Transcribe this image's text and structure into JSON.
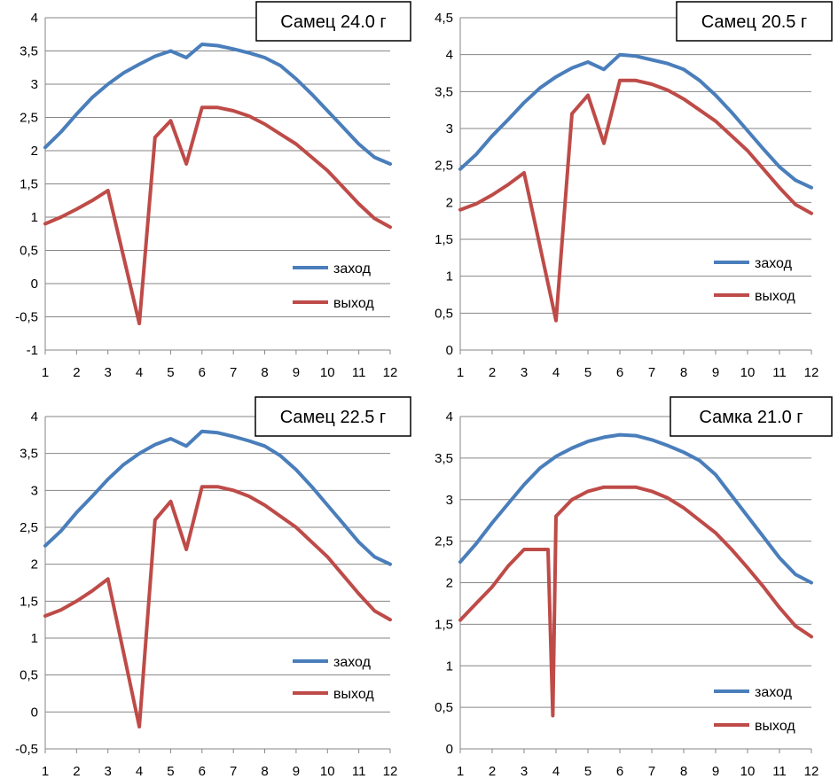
{
  "chart_data": [
    {
      "type": "line",
      "title": "Самец 24.0 г",
      "ylim": [
        -1,
        4
      ],
      "ystep": 0.5,
      "xlim": [
        1,
        12
      ],
      "xticks": [
        1,
        2,
        3,
        4,
        5,
        6,
        7,
        8,
        9,
        10,
        11,
        12
      ],
      "yticks": [
        "-1",
        "-0,5",
        "0",
        "0,5",
        "1",
        "1,5",
        "2",
        "2,5",
        "3",
        "3,5",
        "4"
      ],
      "legend": "right-middle",
      "series": [
        {
          "name": "заход",
          "color": "#4a7ebb",
          "x": [
            1,
            1.5,
            2,
            2.5,
            3,
            3.5,
            4,
            4.5,
            5,
            5.5,
            6,
            6.5,
            7,
            7.5,
            8,
            8.5,
            9,
            9.5,
            10,
            10.5,
            11,
            11.5,
            12
          ],
          "y": [
            2.05,
            2.28,
            2.55,
            2.8,
            3.0,
            3.17,
            3.3,
            3.42,
            3.5,
            3.4,
            3.6,
            3.58,
            3.53,
            3.47,
            3.4,
            3.28,
            3.08,
            2.85,
            2.6,
            2.35,
            2.1,
            1.9,
            1.8
          ]
        },
        {
          "name": "выход",
          "color": "#be4b48",
          "x": [
            1,
            1.5,
            2,
            2.5,
            3,
            3.5,
            4,
            4.5,
            5,
            5.5,
            6,
            6.5,
            7,
            7.5,
            8,
            8.5,
            9,
            9.5,
            10,
            10.5,
            11,
            11.5,
            12
          ],
          "y": [
            0.9,
            1.0,
            1.12,
            1.25,
            1.4,
            0.4,
            -0.6,
            2.2,
            2.45,
            1.8,
            2.65,
            2.65,
            2.6,
            2.52,
            2.4,
            2.25,
            2.1,
            1.9,
            1.7,
            1.45,
            1.2,
            0.98,
            0.85
          ]
        }
      ]
    },
    {
      "type": "line",
      "title": "Самец 20.5 г",
      "ylim": [
        0,
        4.5
      ],
      "ystep": 0.5,
      "xlim": [
        1,
        12
      ],
      "xticks": [
        1,
        2,
        3,
        4,
        5,
        6,
        7,
        8,
        9,
        10,
        11,
        12
      ],
      "yticks": [
        "0",
        "0,5",
        "1",
        "1,5",
        "2",
        "2,5",
        "3",
        "3,5",
        "4",
        "4,5"
      ],
      "legend": "right-middle",
      "series": [
        {
          "name": "заход",
          "color": "#4a7ebb",
          "x": [
            1,
            1.5,
            2,
            2.5,
            3,
            3.5,
            4,
            4.5,
            5,
            5.5,
            6,
            6.5,
            7,
            7.5,
            8,
            8.5,
            9,
            9.5,
            10,
            10.5,
            11,
            11.5,
            12
          ],
          "y": [
            2.45,
            2.65,
            2.9,
            3.12,
            3.35,
            3.55,
            3.7,
            3.82,
            3.9,
            3.8,
            4.0,
            3.98,
            3.93,
            3.88,
            3.8,
            3.65,
            3.45,
            3.22,
            2.97,
            2.72,
            2.48,
            2.3,
            2.2
          ]
        },
        {
          "name": "выход",
          "color": "#be4b48",
          "x": [
            1,
            1.5,
            2,
            2.5,
            3,
            3.5,
            4,
            4.5,
            5,
            5.5,
            6,
            6.5,
            7,
            7.5,
            8,
            8.5,
            9,
            9.5,
            10,
            10.5,
            11,
            11.5,
            12
          ],
          "y": [
            1.9,
            1.98,
            2.1,
            2.24,
            2.4,
            1.4,
            0.4,
            3.2,
            3.45,
            2.8,
            3.65,
            3.65,
            3.6,
            3.52,
            3.4,
            3.25,
            3.1,
            2.9,
            2.7,
            2.45,
            2.2,
            1.97,
            1.85
          ]
        }
      ]
    },
    {
      "type": "line",
      "title": "Самец 22.5 г",
      "ylim": [
        -0.5,
        4
      ],
      "ystep": 0.5,
      "xlim": [
        1,
        12
      ],
      "xticks": [
        1,
        2,
        3,
        4,
        5,
        6,
        7,
        8,
        9,
        10,
        11,
        12
      ],
      "yticks": [
        "-0,5",
        "0",
        "0,5",
        "1",
        "1,5",
        "2",
        "2,5",
        "3",
        "3,5",
        "4"
      ],
      "legend": "right-lower",
      "series": [
        {
          "name": "заход",
          "color": "#4a7ebb",
          "x": [
            1,
            1.5,
            2,
            2.5,
            3,
            3.5,
            4,
            4.5,
            5,
            5.5,
            6,
            6.5,
            7,
            7.5,
            8,
            8.5,
            9,
            9.5,
            10,
            10.5,
            11,
            11.5,
            12
          ],
          "y": [
            2.25,
            2.45,
            2.7,
            2.92,
            3.15,
            3.35,
            3.5,
            3.62,
            3.7,
            3.6,
            3.8,
            3.78,
            3.73,
            3.67,
            3.6,
            3.47,
            3.28,
            3.05,
            2.8,
            2.55,
            2.3,
            2.1,
            2.0
          ]
        },
        {
          "name": "выход",
          "color": "#be4b48",
          "x": [
            1,
            1.5,
            2,
            2.5,
            3,
            3.5,
            4,
            4.5,
            5,
            5.5,
            6,
            6.5,
            7,
            7.5,
            8,
            8.5,
            9,
            9.5,
            10,
            10.5,
            11,
            11.5,
            12
          ],
          "y": [
            1.3,
            1.38,
            1.5,
            1.64,
            1.8,
            0.8,
            -0.2,
            2.6,
            2.85,
            2.2,
            3.05,
            3.05,
            3.0,
            2.92,
            2.8,
            2.65,
            2.5,
            2.3,
            2.1,
            1.85,
            1.6,
            1.37,
            1.25
          ]
        }
      ]
    },
    {
      "type": "line",
      "title": "Самка 21.0 г",
      "ylim": [
        0,
        4
      ],
      "ystep": 0.5,
      "xlim": [
        1,
        12
      ],
      "xticks": [
        1,
        2,
        3,
        4,
        5,
        6,
        7,
        8,
        9,
        10,
        11,
        12
      ],
      "yticks": [
        "0",
        "0,5",
        "1",
        "1,5",
        "2",
        "2,5",
        "3",
        "3,5",
        "4"
      ],
      "legend": "right-lower",
      "series": [
        {
          "name": "заход",
          "color": "#4a7ebb",
          "x": [
            1,
            1.5,
            2,
            2.5,
            3,
            3.5,
            4,
            4.5,
            5,
            5.5,
            6,
            6.5,
            7,
            7.5,
            8,
            8.5,
            9,
            9.5,
            10,
            10.5,
            11,
            11.5,
            12
          ],
          "y": [
            2.25,
            2.47,
            2.72,
            2.95,
            3.18,
            3.38,
            3.52,
            3.62,
            3.7,
            3.75,
            3.78,
            3.77,
            3.72,
            3.65,
            3.57,
            3.47,
            3.3,
            3.05,
            2.8,
            2.55,
            2.3,
            2.1,
            2.0
          ]
        },
        {
          "name": "выход",
          "color": "#be4b48",
          "x": [
            1,
            1.5,
            2,
            2.5,
            3,
            3.5,
            3.75,
            3.9,
            4.0,
            4.5,
            5,
            5.5,
            6,
            6.5,
            7,
            7.5,
            8,
            8.5,
            9,
            9.5,
            10,
            10.5,
            11,
            11.5,
            12
          ],
          "y": [
            1.55,
            1.75,
            1.95,
            2.2,
            2.4,
            2.4,
            2.4,
            0.4,
            2.8,
            3.0,
            3.1,
            3.15,
            3.15,
            3.15,
            3.1,
            3.02,
            2.9,
            2.75,
            2.6,
            2.4,
            2.18,
            1.95,
            1.7,
            1.48,
            1.35
          ]
        }
      ]
    }
  ]
}
